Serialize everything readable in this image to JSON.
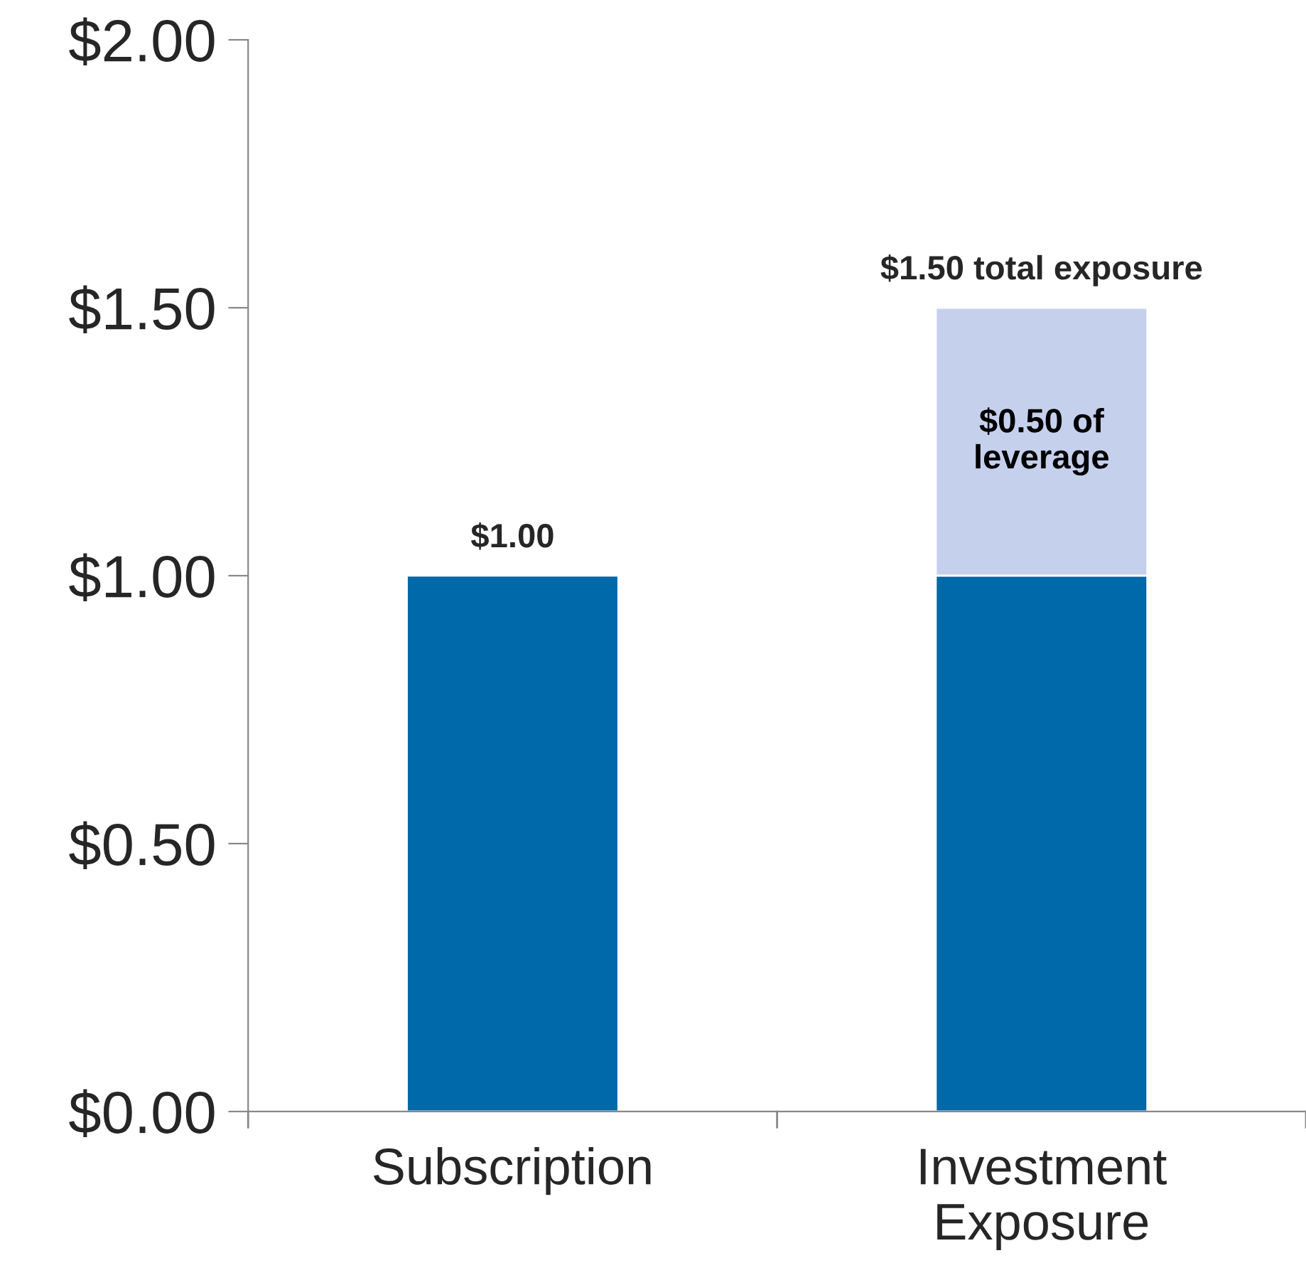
{
  "chart_data": {
    "type": "bar",
    "stacked": true,
    "categories": [
      "Subscription",
      "Investment\nExposure"
    ],
    "series": [
      {
        "color": "#0069aa",
        "values": [
          1.0,
          1.0
        ]
      },
      {
        "color": "#c5d0ec",
        "values": [
          null,
          0.5
        ],
        "value_labels": [
          null,
          "$0.50 of\nleverage"
        ]
      }
    ],
    "totals": [
      "$1.00",
      "$1.50 total exposure"
    ],
    "ylim": [
      0,
      2
    ],
    "yticks": [
      {
        "value": 0,
        "label": "$0.00"
      },
      {
        "value": 0.5,
        "label": "$0.50"
      },
      {
        "value": 1,
        "label": "$1.00"
      },
      {
        "value": 1.5,
        "label": "$1.50"
      },
      {
        "value": 2,
        "label": "$2.00"
      }
    ],
    "grid": false,
    "legend": false
  }
}
